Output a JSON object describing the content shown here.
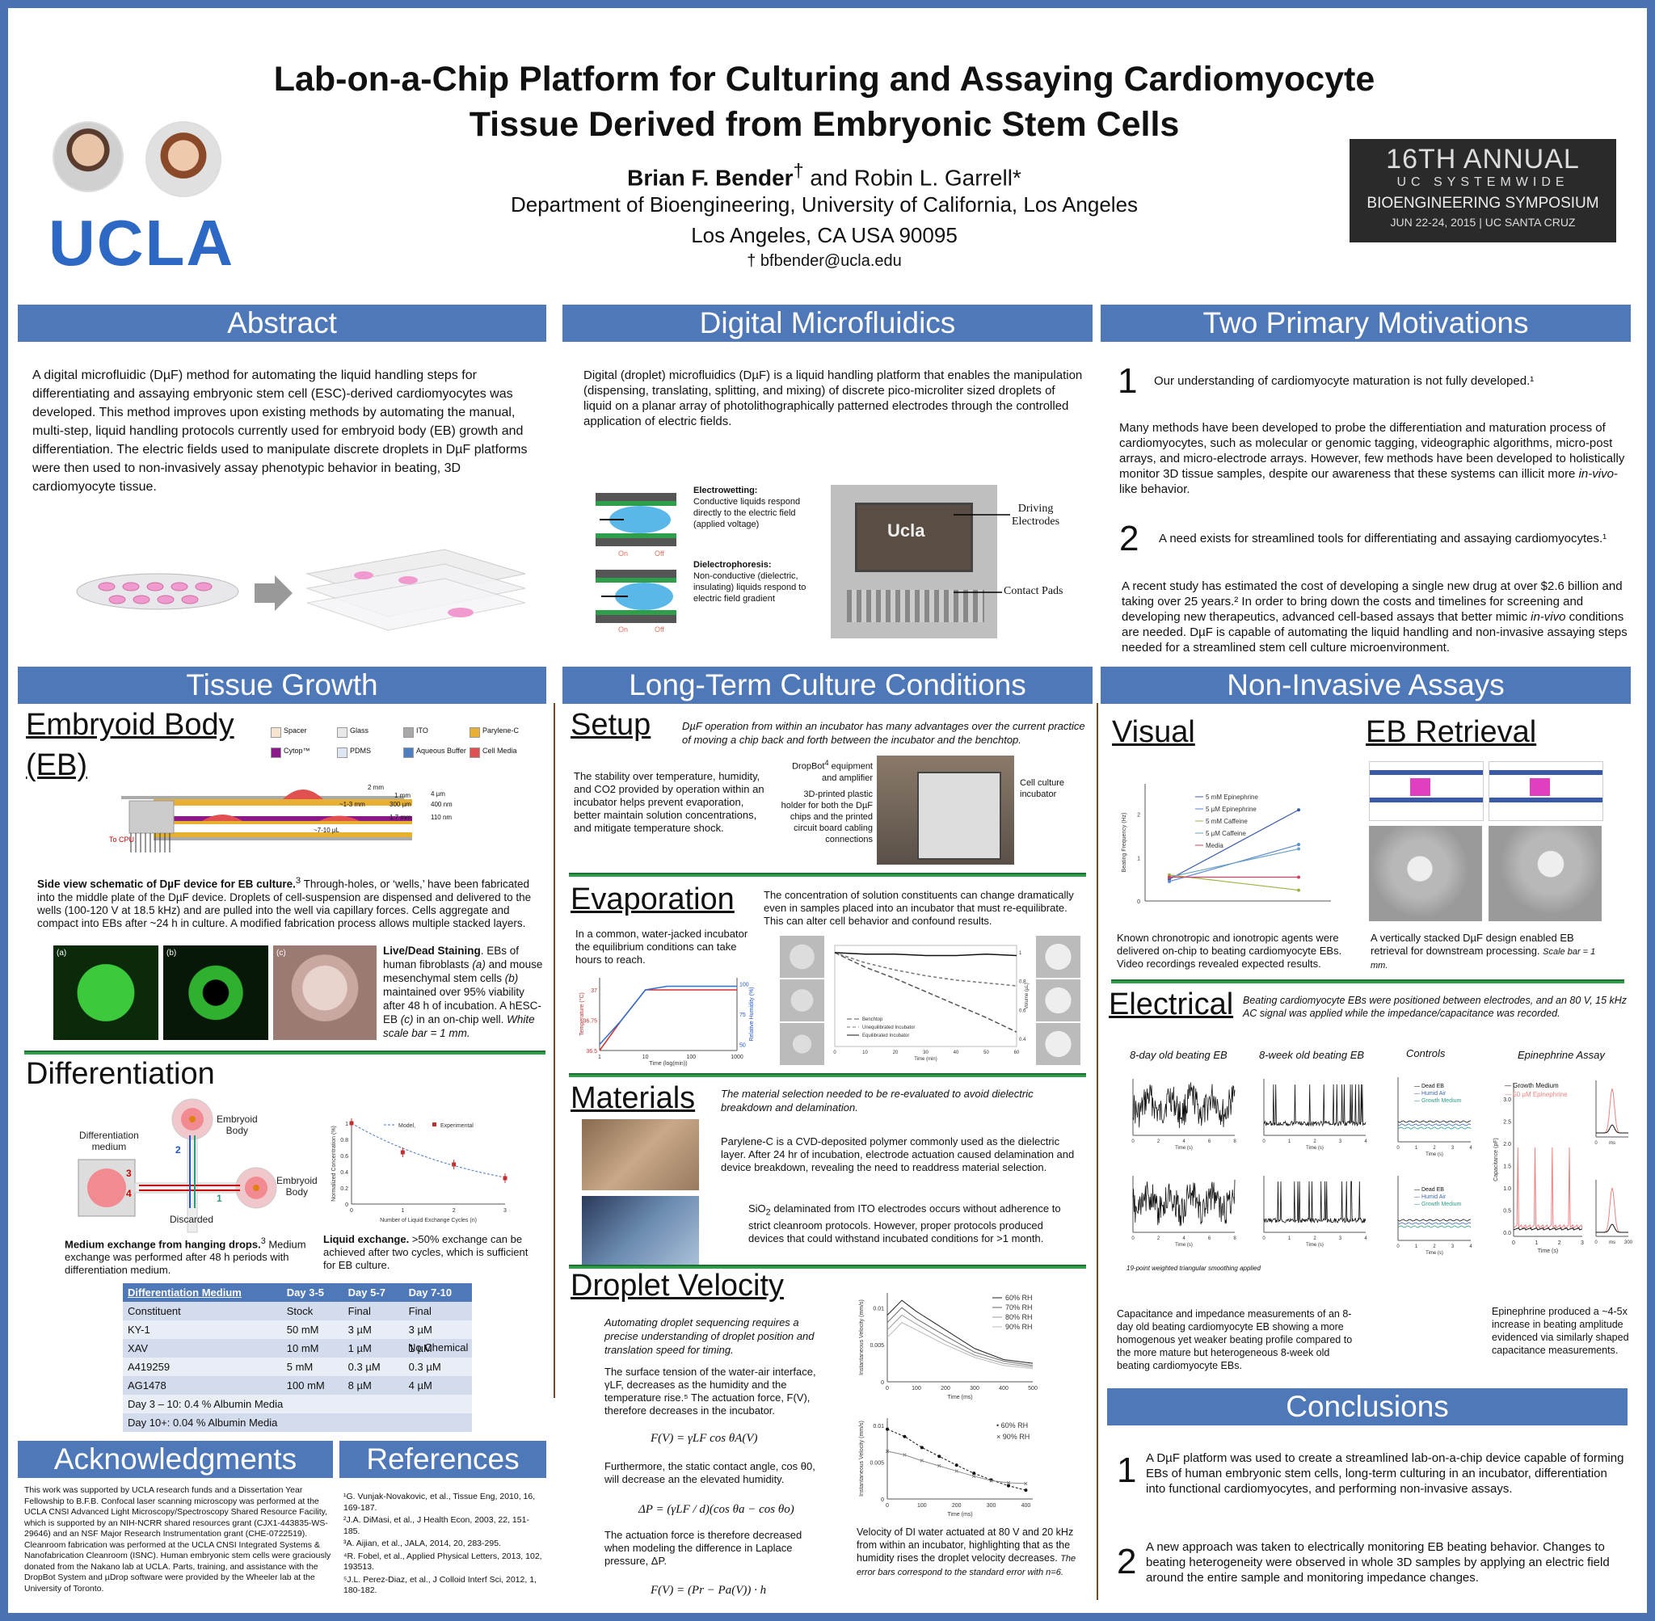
{
  "header": {
    "title_line1": "Lab-on-a-Chip Platform for Culturing and Assaying Cardiomyocyte",
    "title_line2": "Tissue Derived from Embryonic Stem Cells",
    "author1": "Brian F. Bender",
    "author1_mark": "†",
    "and": " and ",
    "author2": "Robin L. Garrell*",
    "dept": "Department of Bioengineering, University of California, Los Angeles",
    "city": "Los Angeles, CA  USA 90095",
    "email": "† bfbender@ucla.edu",
    "ucla_logo": "UCLA",
    "symposium": {
      "line1": "16TH ANNUAL",
      "line2": "UC SYSTEMWIDE",
      "line3": "BIOENGINEERING SYMPOSIUM",
      "line4": "JUN 22-24, 2015   |   UC SANTA CRUZ"
    }
  },
  "abstract": {
    "heading": "Abstract",
    "text": "A digital microfluidic (DµF) method for automating the liquid handling steps for differentiating and assaying embryonic stem cell (ESC)-derived cardiomyocytes was developed. This method improves upon existing methods by automating the manual, multi-step, liquid handling protocols currently used for embryoid body (EB) growth and differentiation. The electric fields used to manipulate discrete droplets in DµF platforms were then used to non-invasively assay phenotypic behavior in beating, 3D cardiomyocyte tissue."
  },
  "dmf": {
    "heading": "Digital Microfluidics",
    "text": "Digital (droplet) microfluidics (DµF) is a liquid handling platform that enables the manipulation (dispensing, translating, splitting, and mixing) of discrete pico-microliter sized droplets of liquid on a planar array of photolithographically patterned electrodes through the controlled application of electric fields.",
    "ew_title": "Electrowetting:",
    "ew_text": "Conductive liquids respond directly to the electric field (applied voltage)",
    "dep_title": "Dielectrophoresis:",
    "dep_text": "Non-conductive (dielectric, insulating) liquids respond to electric field gradient",
    "on": "On",
    "off": "Off",
    "chip_logo": "Ucla",
    "driving": "Driving",
    "electrodes": "Electrodes",
    "contact_pads": "Contact Pads"
  },
  "motivations": {
    "heading": "Two Primary Motivations",
    "n1": "1",
    "m1": "Our understanding of cardiomyocyte maturation is not fully developed.¹",
    "m1_text_a": "Many methods have been developed to probe the differentiation and maturation process of cardiomyocytes, such as molecular or genomic tagging, videographic algorithms, micro-post arrays, and micro-electrode arrays. However, few methods have been developed to holistically monitor 3D tissue samples, despite our awareness that these systems can illicit more ",
    "m1_text_it": "in-vivo",
    "m1_text_b": "-like behavior.",
    "n2": "2",
    "m2": "A need exists for streamlined tools for differentiating and assaying cardiomyocytes.¹",
    "m2_text_a": "A recent study has estimated the cost of developing a single new drug at over $2.6 billion and taking over 25 years.² In order to bring down the costs and timelines for screening and developing new therapeutics, advanced cell-based assays that better mimic ",
    "m2_text_it": "in-vivo",
    "m2_text_b": " conditions are needed. DµF is capable of automating the liquid handling and non-invasive assaying steps needed for a streamlined stem cell culture microenvironment."
  },
  "tissue": {
    "heading": "Tissue Growth",
    "eb_line1": "Embryoid Body",
    "eb_line2": "(EB)",
    "legend": [
      "Spacer",
      "Glass",
      "ITO",
      "Parylene-C",
      "Cytop™",
      "PDMS",
      "Aqueous Buffer",
      "Cell Media"
    ],
    "legend_colors": [
      "#f5e3cf",
      "#e8e8e8",
      "#a8a8a8",
      "#e8b030",
      "#8a1a8a",
      "#dde6f2",
      "#4f7fc0",
      "#e05050"
    ],
    "dims": [
      "2 mm",
      "1 mm",
      "~1-3 mm",
      "300 µm",
      "1.7 mm",
      "~7-10 µL",
      "4 µm",
      "400 nm",
      "110 nm"
    ],
    "to_cpu": "To CPU",
    "caption_b": "Side view schematic of DµF device for EB culture.",
    "caption_sup": "3",
    "caption": " Through-holes, or ‘wells,’ have been fabricated into the middle plate of the DµF device.  Droplets of cell-suspension are dispensed and delivered to the wells (100-120 V at 18.5 kHz) and are pulled into the well via capillary forces.  Cells aggregate and compact into EBs after ~24 h in culture. A modified fabrication process allows multiple stacked layers.",
    "panel_a": "(a)",
    "panel_b": "(b)",
    "panel_c": "(c)",
    "ld_b": "Live/Dead Staining",
    "ld_text1": ". EBs of human fibroblasts ",
    "ld_a": "(a)",
    "ld_text2": " and mouse mesenchymal stem cells ",
    "ld_bb": "(b)",
    "ld_text3": " maintained over 95% viability after 48 h of incubation. A hESC-EB ",
    "ld_c": "(c)",
    "ld_text4": " in an on-chip well. ",
    "ld_scale": "White scale bar = 1 mm."
  },
  "differentiation": {
    "heading": "Differentiation",
    "diff_medium_1": "Differentiation",
    "diff_medium_2": "medium",
    "embryoid1": "Embryoid",
    "body1": "Body",
    "embryoid2": "Embryoid",
    "body2": "Body",
    "discarded": "Discarded",
    "arrow_nums": [
      "1",
      "2",
      "3",
      "4"
    ],
    "medium_caption_b": "Medium exchange from hanging drops.",
    "medium_sup": "3",
    "medium_caption": "  Medium exchange was performed after 48 h periods with differentiation medium.",
    "liquid_b": "Liquid exchange.",
    "liquid_text": " >50% exchange can be achieved after two cycles, which is sufficient for EB culture.",
    "table": {
      "headers": [
        "Differentiation Medium",
        "Day 3-5",
        "Day 5-7",
        "Day 7-10"
      ],
      "subheader": [
        "Constituent",
        "Stock",
        "Final",
        "Final"
      ],
      "rows": [
        [
          "KY-1",
          "50 mM",
          "3 µM",
          "3 µM"
        ],
        [
          "XAV",
          "10 mM",
          "1 µM",
          "1 µM"
        ],
        [
          "A419259",
          "5 mM",
          "0.3 µM",
          "0.3 µM"
        ],
        [
          "AG1478",
          "100 mM",
          "8 µM",
          "4 µM"
        ]
      ],
      "no_chemical": "No Chemical",
      "foot1": "Day 3 – 10: 0.4 % Albumin Media",
      "foot2": "Day 10+: 0.04 % Albumin Media"
    }
  },
  "long_term": {
    "heading": "Long-Term Culture Conditions",
    "setup": "Setup",
    "setup_italic": "DµF operation from within an incubator has many advantages over the current practice of moving a chip back and forth between the incubator and the benchtop.",
    "setup_text": "The stability over temperature, humidity, and CO2 provided by operation within an incubator helps prevent evaporation, better maintain solution concentrations, and mitigate temperature shock.",
    "dropbot_a": "DropBot",
    "dropbot_sup": "4",
    "dropbot_b": " equipment and amplifier",
    "holder": "3D-printed plastic holder for both the DµF chips and the printed circuit board cabling connections",
    "cell_culture": "Cell culture incubator",
    "evaporation": "Evaporation",
    "evap_text": "The concentration of solution constituents can change dramatically even in samples placed into an incubator that must re-equilibrate. This can alter cell behavior and confound results.",
    "evap_text2": "In a common, water-jacked incubator the equilibrium conditions can take hours to reach.",
    "materials": "Materials",
    "mat_italic": "The material selection needed to be re-evaluated to avoid dielectric breakdown and delamination.",
    "mat_text1": "Parylene-C is a CVD-deposited polymer commonly used as the dielectric layer. After 24 hr of incubation, electrode actuation caused delamination and device breakdown, revealing the need to readdress material selection.",
    "mat_text2_a": "SiO",
    "mat_text2_sub": "2",
    "mat_text2_b": " delaminated from ITO electrodes occurs without adherence to strict cleanroom protocols. However, proper protocols produced devices that could withstand incubated conditions for >1 month.",
    "droplet": "Droplet Velocity",
    "dv_italic": "Automating droplet sequencing requires a precise understanding of droplet position and translation speed for timing.",
    "dv_text1": "The surface tension of the water-air interface, γLF, decreases as the humidity and the temperature rise.⁵ The actuation force, F(V), therefore decreases in the incubator.",
    "eq1": "F(V) = γLF cos θA(V)",
    "dv_text2": "Furthermore, the static contact angle, cos θ0, will decrease an the elevated humidity.",
    "eq2": "ΔP = (γLF / d)(cos θa − cos θo)",
    "dv_text3": "The actuation force is therefore decreased when modeling the difference in Laplace pressure, ΔP.",
    "eq3": "F(V) = (Pr − Pa(V)) · h",
    "dv_caption": "Velocity of DI water actuated at 80 V and 20 kHz from within an incubator, highlighting that as the humidity rises the droplet velocity decreases. ",
    "dv_caption_it": "The error bars correspond to the standard error with n=6."
  },
  "assays": {
    "heading": "Non-Invasive Assays",
    "visual": "Visual",
    "visual_text": "Known chronotropic and ionotropic agents were delivered on-chip to beating cardiomyocyte EBs. Video recordings revealed expected results.",
    "eb_retrieval": "EB Retrieval",
    "retrieval_text": "A vertically stacked DµF design enabled EB retrieval for downstream processing. ",
    "retrieval_scale": "Scale bar = 1 mm.",
    "electrical": "Electrical",
    "elec_italic": "Beating cardiomyocyte EBs were positioned between electrodes, and an 80 V, 15 kHz AC signal was applied while the impedance/capacitance was recorded.",
    "plot_titles": [
      "8-day old beating EB",
      "8-week old beating EB",
      "Controls",
      "Epinephrine Assay"
    ],
    "elec_text1": "Capacitance and impedance measurements of an 8-day old beating cardiomyocyte EB showing a more homogenous yet weaker beating profile compared to the more mature but heterogeneous 8-week old beating cardiomyocyte EBs.",
    "elec_text2": "Epinephrine produced a ~4-5x increase in beating amplitude evidenced via similarly shaped capacitance measurements.",
    "smoothing": "19-point weighted triangular smoothing applied",
    "controls_legend": [
      "Dead EB",
      "Humid Air",
      "Growth Medium"
    ],
    "epi_legend": [
      "Growth Medium",
      "50 µM Epinephrine"
    ],
    "epi_ticks": [
      "3.0",
      "2.5",
      "2.0",
      "1.5",
      "1.0",
      "0.5",
      "0.0"
    ],
    "epi_ylabel": "Capacitance (pF)",
    "epi_xticks": [
      "0",
      "1",
      "2",
      "3"
    ],
    "time_s": "Time (s)",
    "ms": "ms",
    "ms300": "300"
  },
  "conclusions": {
    "heading": "Conclusions",
    "n1": "1",
    "c1": "A DµF platform was used to create a streamlined lab-on-a-chip device capable of forming EBs of human embryonic stem cells, long-term culturing in an incubator, differentiation into functional cardiomyocytes, and performing non-invasive assays.",
    "n2": "2",
    "c2": "A new approach was taken to electrically monitoring EB beating behavior. Changes to beating heterogeneity were observed in whole 3D samples by applying an electric field around the entire sample and monitoring impedance changes."
  },
  "acknowledgments": {
    "heading": "Acknowledgments",
    "text": "This work was supported by UCLA research funds and a Dissertation Year Fellowship to B.F.B. Confocal laser scanning microscopy was performed at the UCLA CNSI Advanced Light Microscopy/Spectroscopy Shared Resource Facility, which is supported by an NIH-NCRR shared resources grant (CJX1-443835-WS-29646) and an NSF Major Research Instrumentation grant (CHE-0722519). Cleanroom fabrication was performed at the UCLA CNSI Integrated Systems & Nanofabrication Cleanroom (ISNC). Human embryonic stem cells were graciously donated from the Nakano lab at UCLA. Parts, training, and assistance with the DropBot System and µDrop software were provided by the Wheeler lab at the University of Toronto."
  },
  "references": {
    "heading": "References",
    "items": [
      "¹G. Vunjak-Novakovic, et al., Tissue Eng, 2010, 16, 169-187.",
      "²J.A. DiMasi, et al., J Health Econ, 2003, 22, 151-185.",
      "³A. Aijian, et al., JALA, 2014, 20, 283-295.",
      "⁴R. Fobel, et al., Applied Physical Letters, 2013, 102, 193513.",
      "⁵J.L. Perez-Diaz, et al., J Colloid Interf Sci, 2012, 1, 180-182."
    ]
  },
  "chart_data": [
    {
      "type": "scatter",
      "title": "",
      "xlabel": "Number of Liquid Exchange Cycles (n)",
      "ylabel": "Normalized Concentration (%)",
      "legend": [
        "Model,",
        "Experimental"
      ],
      "x": [
        0,
        1,
        2,
        3
      ],
      "series": [
        {
          "name": "Model,",
          "values": [
            1.0,
            0.66,
            0.46,
            0.33
          ]
        },
        {
          "name": "Experimental",
          "values": [
            1.0,
            0.64,
            0.49,
            0.32
          ]
        }
      ],
      "xticks": [
        "0",
        "1",
        "2",
        "3"
      ],
      "yticks": [
        "0",
        "0.2",
        "0.4",
        "0.6",
        "0.8",
        "1"
      ],
      "xlim": [
        0,
        3
      ],
      "ylim": [
        0,
        1
      ]
    },
    {
      "type": "line",
      "title": "",
      "xlabel": "Time (log(min))",
      "ylabel": "Temperature (°C)",
      "ylabel2": "Relative Humidity (%)",
      "xticks": [
        "1",
        "10",
        "100",
        "1000"
      ],
      "yticks": [
        "36.5",
        "36.75",
        "37"
      ],
      "yticks2": [
        "50",
        "75",
        "100"
      ],
      "x": [
        1,
        3,
        10,
        30,
        100,
        1000
      ],
      "series": [
        {
          "name": "Temperature",
          "values": [
            36.5,
            36.75,
            37.0,
            37.0,
            37.0,
            37.0
          ]
        },
        {
          "name": "Relative Humidity",
          "values": [
            50,
            70,
            95,
            98,
            98,
            98
          ]
        }
      ]
    },
    {
      "type": "line",
      "title": "",
      "xlabel": "Time (min)",
      "ylabel": "Volume (µL)",
      "legend": [
        "Benchtop",
        "Unequilibrated Incubator",
        "Equilibrated Incubator"
      ],
      "xticks": [
        "0",
        "10",
        "20",
        "30",
        "40",
        "50",
        "60"
      ],
      "yticks": [
        "0.4",
        "0.6",
        "0.8",
        "1"
      ],
      "x": [
        0,
        10,
        20,
        30,
        40,
        50,
        60
      ],
      "series": [
        {
          "name": "Benchtop",
          "values": [
            1.0,
            0.9,
            0.82,
            0.73,
            0.64,
            0.55,
            0.45
          ]
        },
        {
          "name": "Unequilibrated Incubator",
          "values": [
            1.0,
            0.93,
            0.88,
            0.84,
            0.81,
            0.79,
            0.77
          ]
        },
        {
          "name": "Equilibrated Incubator",
          "values": [
            1.0,
            0.99,
            0.99,
            0.98,
            0.98,
            0.99,
            0.98
          ]
        }
      ]
    },
    {
      "type": "line",
      "title": "",
      "xlabel": "Time (ms)",
      "ylabel": "Instantaneous Velocity (mm/s)",
      "legend": [
        "60% RH",
        "70% RH",
        "80% RH",
        "90% RH"
      ],
      "xticks": [
        "0",
        "100",
        "200",
        "300",
        "400",
        "500"
      ],
      "yticks": [
        "0",
        "0.005",
        "0.01"
      ],
      "x": [
        0,
        50,
        100,
        200,
        300,
        400,
        500
      ],
      "series": [
        {
          "name": "60% RH",
          "values": [
            0.009,
            0.011,
            0.0095,
            0.007,
            0.0045,
            0.003,
            0.0025
          ]
        },
        {
          "name": "70% RH",
          "values": [
            0.008,
            0.01,
            0.0085,
            0.0062,
            0.004,
            0.0028,
            0.0022
          ]
        },
        {
          "name": "80% RH",
          "values": [
            0.007,
            0.009,
            0.0078,
            0.0055,
            0.0036,
            0.0025,
            0.002
          ]
        },
        {
          "name": "90% RH",
          "values": [
            0.006,
            0.008,
            0.007,
            0.005,
            0.0033,
            0.0022,
            0.0018
          ]
        }
      ]
    },
    {
      "type": "scatter",
      "title": "",
      "xlabel": "Time (ms)",
      "ylabel": "Instantaneous Velocity (mm/s)",
      "legend": [
        "60% RH",
        "90% RH"
      ],
      "xticks": [
        "0",
        "100",
        "200",
        "300",
        "400"
      ],
      "yticks": [
        "0",
        "0.005",
        "0.01"
      ],
      "x": [
        0,
        50,
        100,
        150,
        200,
        250,
        300,
        350,
        400
      ],
      "series": [
        {
          "name": "60% RH",
          "values": [
            0.0095,
            0.0085,
            0.007,
            0.0058,
            0.0046,
            0.0035,
            0.0026,
            0.0018,
            0.0012
          ]
        },
        {
          "name": "90% RH",
          "values": [
            0.0065,
            0.006,
            0.0052,
            0.0045,
            0.0038,
            0.0031,
            0.0025,
            0.0022,
            0.0021
          ]
        }
      ]
    },
    {
      "type": "line",
      "title": "",
      "xlabel": "",
      "ylabel": "Beating Frequency (Hz)",
      "legend": [
        "5 mM Epinephrine",
        "5 µM Epinephrine",
        "5 mM Caffeine",
        "5 µM Caffeine",
        "Media"
      ],
      "yticks": [
        "0",
        "1",
        "2"
      ],
      "x": [
        0,
        1
      ],
      "series": [
        {
          "name": "5 mM Epinephrine",
          "values": [
            0.5,
            2.1
          ]
        },
        {
          "name": "5 µM Epinephrine",
          "values": [
            0.45,
            1.3
          ]
        },
        {
          "name": "5 mM Caffeine",
          "values": [
            0.6,
            0.25
          ]
        },
        {
          "name": "5 µM Caffeine",
          "values": [
            0.55,
            1.2
          ]
        },
        {
          "name": "Media",
          "values": [
            0.55,
            0.55
          ]
        }
      ]
    }
  ]
}
